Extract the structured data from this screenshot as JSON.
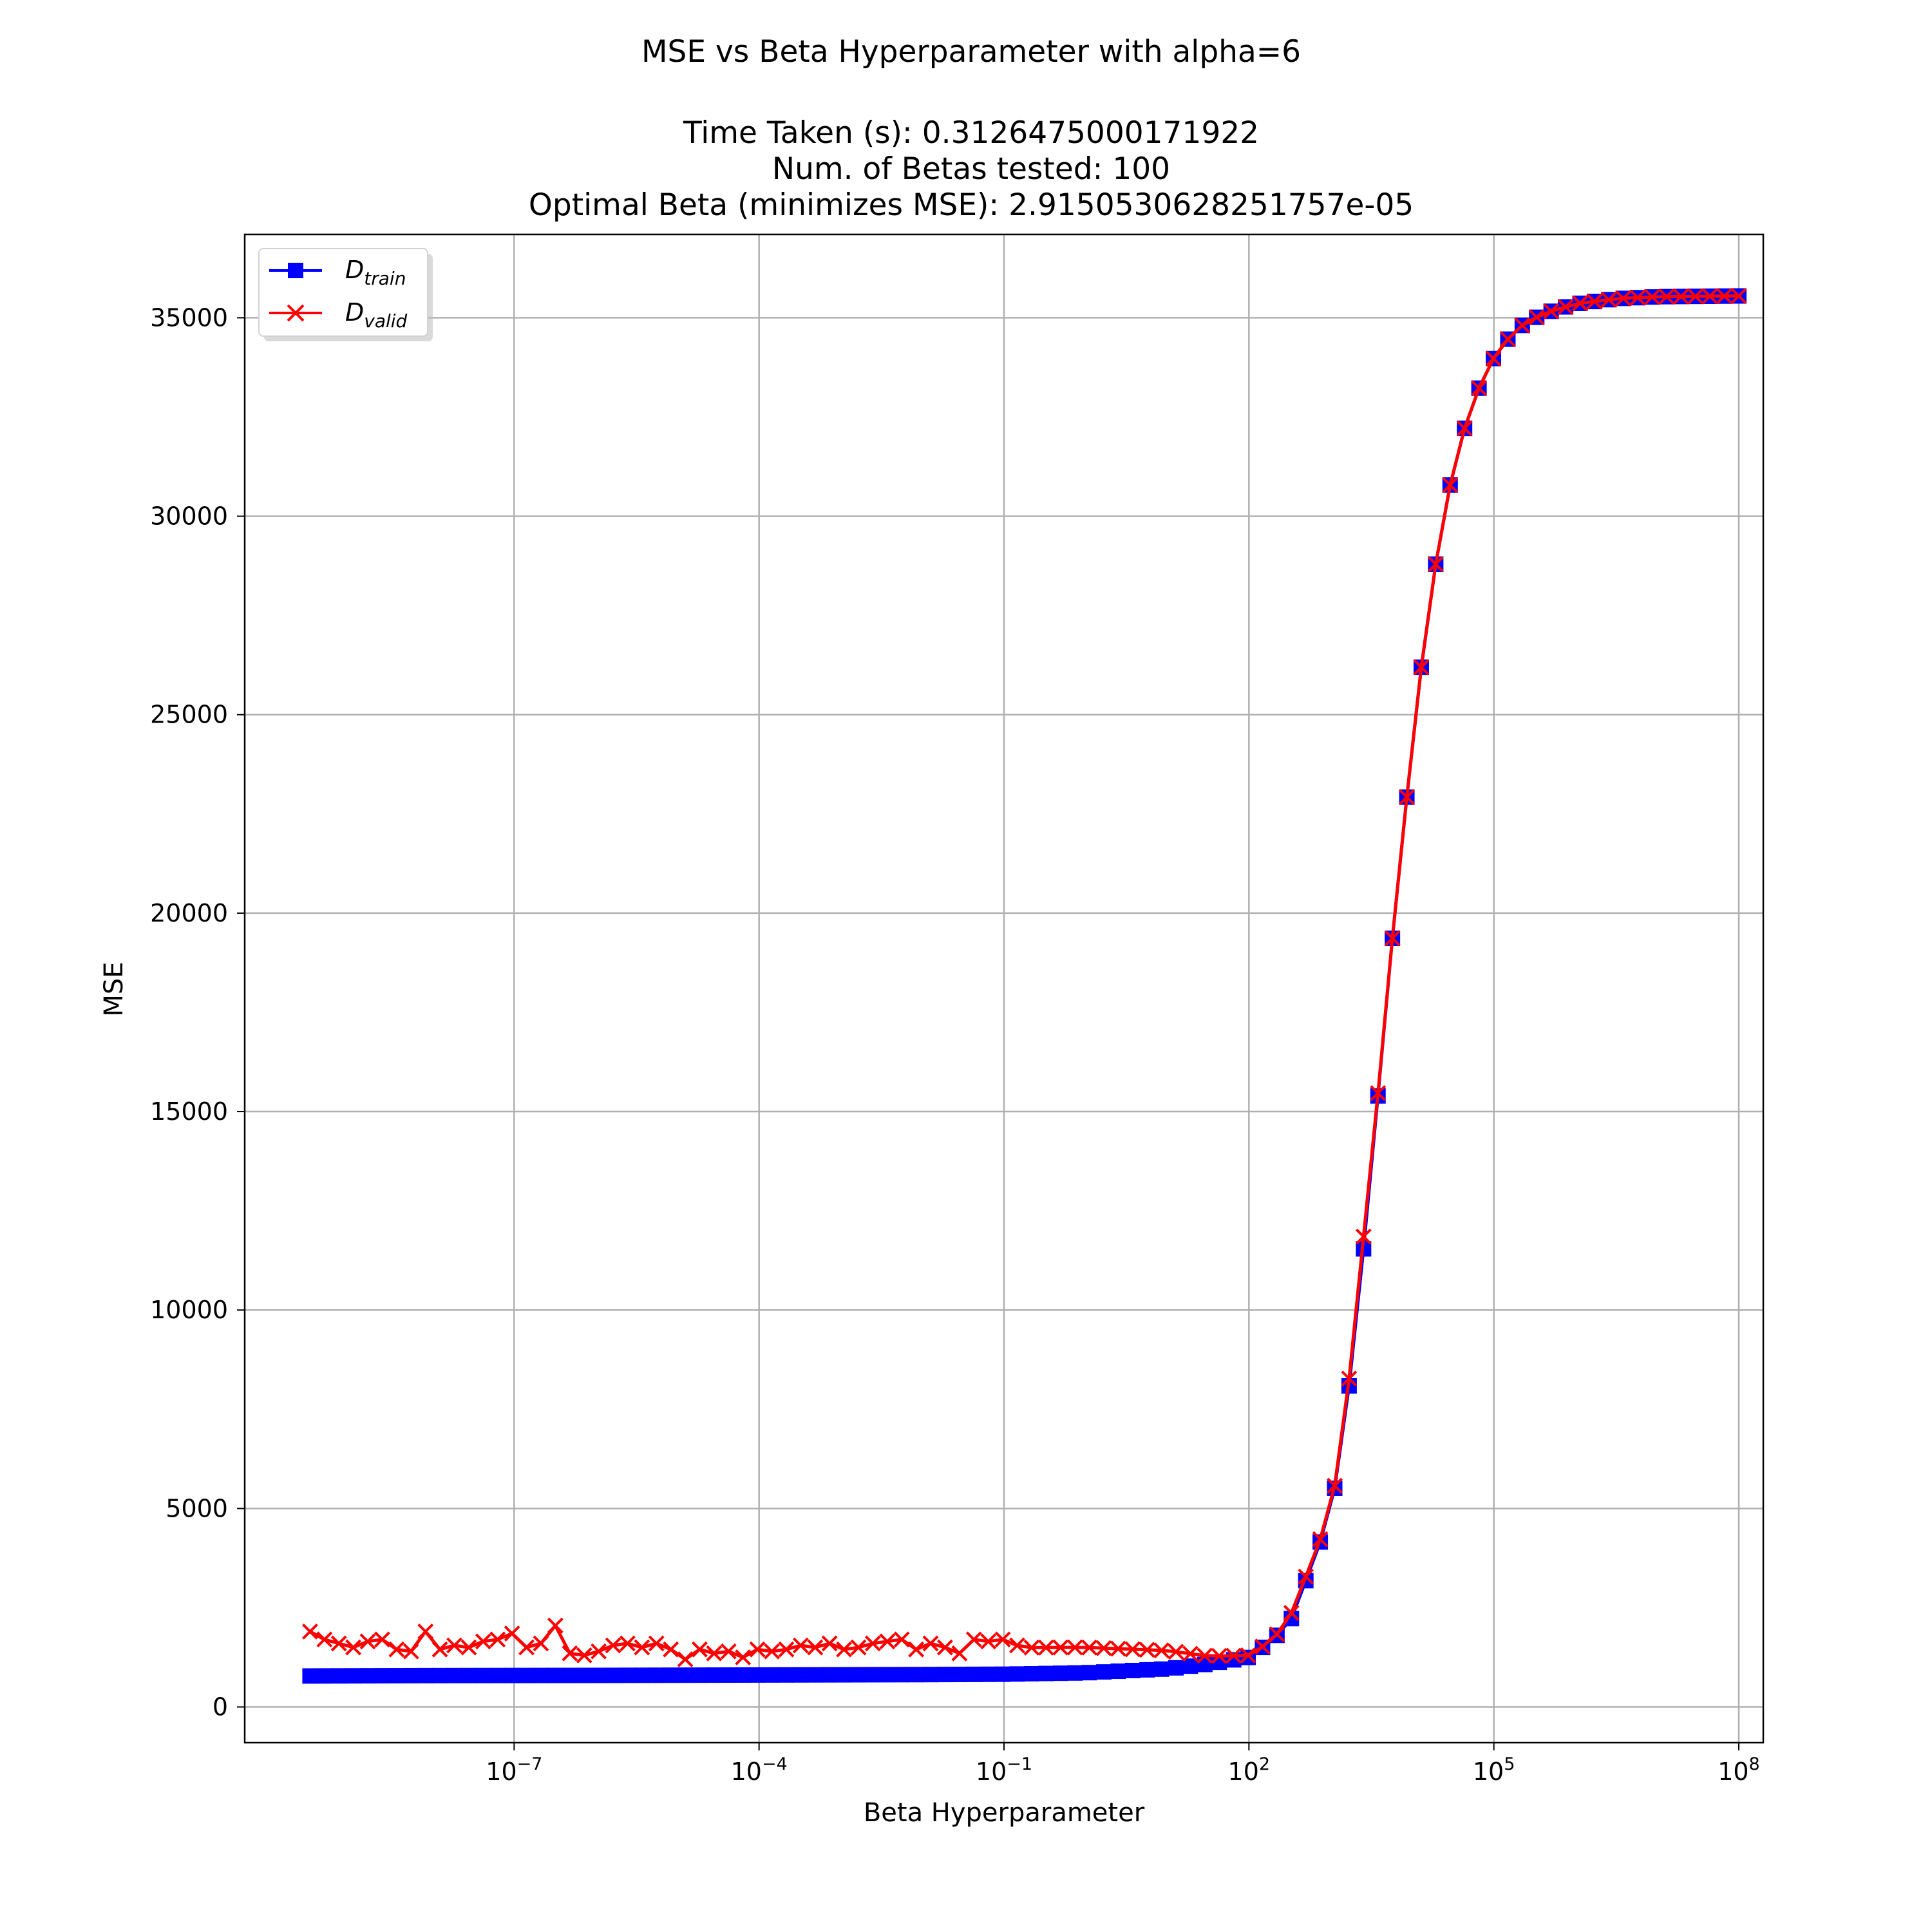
{
  "chart_data": {
    "type": "line",
    "title_lines": [
      "MSE vs Beta Hyperparameter with alpha=6",
      "",
      "Time Taken (s): 0.3126475000171922",
      "Num. of Betas tested: 100",
      "Optimal Beta (minimizes MSE): 2.9150530628251757e-05"
    ],
    "xlabel": "Beta Hyperparameter",
    "ylabel": "MSE",
    "xscale": "log",
    "xlim_exp": [
      -10.3,
      8.3
    ],
    "ylim": [
      -900,
      37100
    ],
    "x_ticks": [
      {
        "exp": -7,
        "base": "10",
        "sup": "−7"
      },
      {
        "exp": -4,
        "base": "10",
        "sup": "−4"
      },
      {
        "exp": -1,
        "base": "10",
        "sup": "−1"
      },
      {
        "exp": 2,
        "base": "10",
        "sup": "2"
      },
      {
        "exp": 5,
        "base": "10",
        "sup": "5"
      },
      {
        "exp": 8,
        "base": "10",
        "sup": "8"
      }
    ],
    "y_ticks": [
      {
        "value": 0,
        "label": "0"
      },
      {
        "value": 5000,
        "label": "5000"
      },
      {
        "value": 10000,
        "label": "10000"
      },
      {
        "value": 15000,
        "label": "15000"
      },
      {
        "value": 20000,
        "label": "20000"
      },
      {
        "value": 25000,
        "label": "25000"
      },
      {
        "value": 30000,
        "label": "30000"
      },
      {
        "value": 35000,
        "label": "35000"
      }
    ],
    "grid": true,
    "legend_placement": "upper-left",
    "x_range_exp": [
      -9.5,
      8
    ],
    "num_points": 100,
    "series": [
      {
        "name": "D_train",
        "legend_main": "D",
        "legend_sub": "train",
        "color": "#0000ff",
        "marker": "square",
        "anchors": [
          [
            -9.5,
            780
          ],
          [
            -8,
            790
          ],
          [
            -6,
            795
          ],
          [
            -4,
            805
          ],
          [
            -2,
            815
          ],
          [
            -1,
            825
          ],
          [
            0,
            860
          ],
          [
            1,
            960
          ],
          [
            1.5,
            1080
          ],
          [
            2,
            1250
          ],
          [
            2.3,
            1700
          ],
          [
            2.53,
            2250
          ],
          [
            2.7,
            3200
          ],
          [
            3.0,
            4850
          ],
          [
            3.18,
            7200
          ],
          [
            3.35,
            10400
          ],
          [
            3.53,
            14200
          ],
          [
            3.7,
            18200
          ],
          [
            3.89,
            22050
          ],
          [
            4.06,
            25400
          ],
          [
            4.24,
            28200
          ],
          [
            4.41,
            30300
          ],
          [
            4.59,
            31900
          ],
          [
            4.77,
            33000
          ],
          [
            4.94,
            33800
          ],
          [
            5.1,
            34300
          ],
          [
            5.3,
            34750
          ],
          [
            5.6,
            35100
          ],
          [
            6.0,
            35350
          ],
          [
            6.5,
            35480
          ],
          [
            7.0,
            35530
          ],
          [
            8.0,
            35550
          ]
        ]
      },
      {
        "name": "D_valid",
        "legend_main": "D",
        "legend_sub": "valid",
        "color": "#ff0000",
        "marker": "x",
        "anchors": [
          [
            -9.5,
            1550
          ],
          [
            -6,
            1550
          ],
          [
            -3,
            1480
          ],
          [
            0,
            1500
          ],
          [
            1,
            1420
          ],
          [
            1.5,
            1280
          ],
          [
            2,
            1300
          ],
          [
            2.3,
            1700
          ],
          [
            2.53,
            2400
          ],
          [
            2.7,
            3300
          ],
          [
            3.0,
            4900
          ],
          [
            3.18,
            7300
          ],
          [
            3.35,
            10800
          ],
          [
            3.53,
            14300
          ],
          [
            3.7,
            18200
          ],
          [
            3.89,
            22050
          ],
          [
            4.06,
            25400
          ],
          [
            4.24,
            28200
          ],
          [
            4.41,
            30300
          ],
          [
            4.59,
            31900
          ],
          [
            4.77,
            33000
          ],
          [
            4.94,
            33800
          ],
          [
            5.1,
            34300
          ],
          [
            5.3,
            34750
          ],
          [
            5.6,
            35100
          ],
          [
            6.0,
            35350
          ],
          [
            6.5,
            35480
          ],
          [
            7.0,
            35530
          ],
          [
            8.0,
            35550
          ]
        ],
        "noise": [
          1900,
          1700,
          1600,
          1500,
          1650,
          1700,
          1450,
          1400,
          1900,
          1450,
          1550,
          1500,
          1650,
          1700,
          1850,
          1500,
          1600,
          2050,
          1350,
          1300,
          1400,
          1550,
          1600,
          1500,
          1600,
          1450,
          1200,
          1450,
          1350,
          1400,
          1250,
          1450,
          1400,
          1450,
          1550,
          1500,
          1600,
          1450,
          1500,
          1600,
          1650,
          1700,
          1450,
          1600,
          1500,
          1350,
          1700,
          1650,
          1700,
          1550
        ]
      }
    ]
  }
}
